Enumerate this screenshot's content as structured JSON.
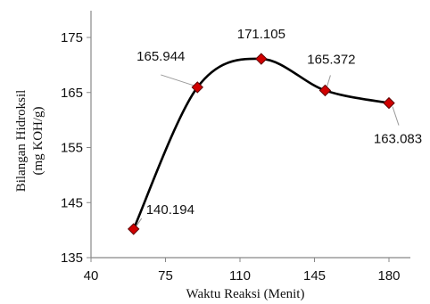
{
  "chart_data": {
    "type": "line",
    "xlabel": "Waktu Reaksi (Menit)",
    "ylabel_lines": [
      "Bilangan Hidroksil",
      "(mg KOH/g)"
    ],
    "xlim": [
      40,
      180
    ],
    "ylim": [
      135,
      175
    ],
    "x_ticks": [
      40,
      75,
      110,
      145,
      180
    ],
    "x_tick_labels": [
      "40",
      "75",
      "110",
      "145",
      "180"
    ],
    "y_ticks": [
      135,
      145,
      155,
      165,
      175
    ],
    "y_tick_labels": [
      "135",
      "145",
      "155",
      "165",
      "175"
    ],
    "series": [
      {
        "x": [
          60,
          90,
          120,
          150,
          180
        ],
        "y": [
          140.194,
          165.944,
          171.105,
          165.372,
          163.083
        ],
        "labels": [
          "140.194",
          "165.944",
          "171.105",
          "165.372",
          "163.083"
        ]
      }
    ],
    "smooth": true,
    "marker": "diamond",
    "line_color": "#000000",
    "marker_color": "#d00000",
    "grid": false,
    "legend": "none"
  }
}
